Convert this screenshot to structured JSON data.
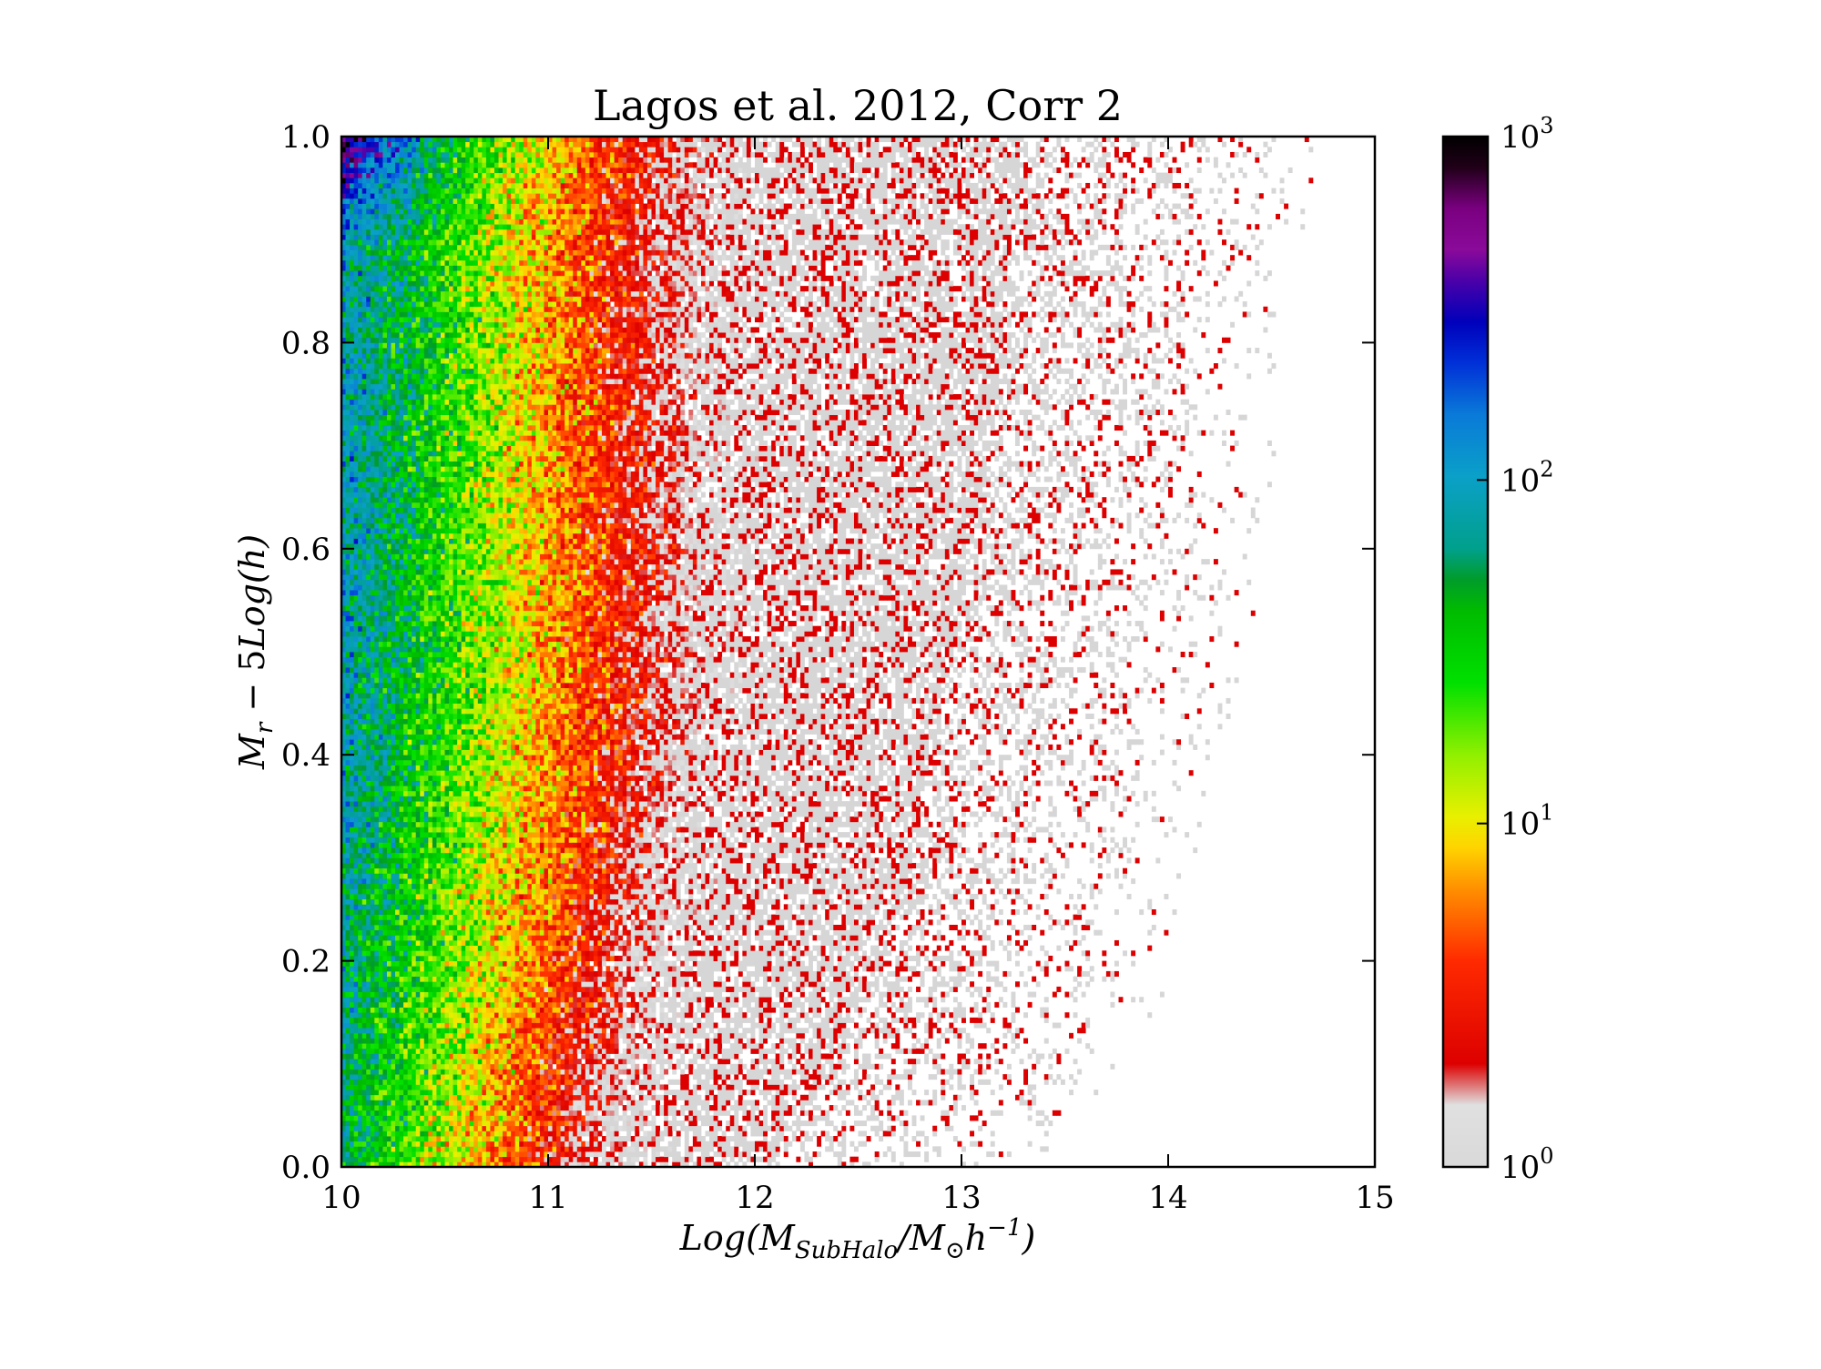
{
  "chart_data": {
    "type": "heatmap",
    "title": "Lagos et al. 2012, Corr 2",
    "xlabel": "Log(M_SubHalo/M_⊙h^{-1})",
    "ylabel": "M_r − 5Log(h)",
    "xlim": [
      10,
      15
    ],
    "ylim": [
      0.0,
      1.0
    ],
    "xticks": [
      10,
      11,
      12,
      13,
      14,
      15
    ],
    "yticks": [
      0.0,
      0.2,
      0.4,
      0.6,
      0.8,
      1.0
    ],
    "xtick_labels": [
      "10",
      "11",
      "12",
      "13",
      "14",
      "15"
    ],
    "ytick_labels": [
      "0.0",
      "0.2",
      "0.4",
      "0.6",
      "0.8",
      "1.0"
    ],
    "grid": false,
    "colorbar": {
      "scale": "log",
      "range": [
        1,
        1000
      ],
      "tick_values": [
        1,
        10,
        100,
        1000
      ],
      "tick_labels": [
        "10",
        "10",
        "10",
        "10"
      ],
      "tick_exponents": [
        "0",
        "1",
        "2",
        "3"
      ],
      "colors": [
        {
          "pos": 0.0,
          "color": "#d9d9d9"
        },
        {
          "pos": 0.06,
          "color": "#e0e0e0"
        },
        {
          "pos": 0.1,
          "color": "#dd0000"
        },
        {
          "pos": 0.2,
          "color": "#ff2a00"
        },
        {
          "pos": 0.27,
          "color": "#ff9000"
        },
        {
          "pos": 0.31,
          "color": "#ffd400"
        },
        {
          "pos": 0.34,
          "color": "#e8f000"
        },
        {
          "pos": 0.4,
          "color": "#90f000"
        },
        {
          "pos": 0.47,
          "color": "#00e000"
        },
        {
          "pos": 0.54,
          "color": "#00bb00"
        },
        {
          "pos": 0.57,
          "color": "#009c2a"
        },
        {
          "pos": 0.6,
          "color": "#00a08c"
        },
        {
          "pos": 0.67,
          "color": "#0aa0c8"
        },
        {
          "pos": 0.73,
          "color": "#0a7ad8"
        },
        {
          "pos": 0.78,
          "color": "#0030d8"
        },
        {
          "pos": 0.82,
          "color": "#0000bb"
        },
        {
          "pos": 0.86,
          "color": "#4a00a8"
        },
        {
          "pos": 0.89,
          "color": "#8a0a9a"
        },
        {
          "pos": 0.93,
          "color": "#7a0080"
        },
        {
          "pos": 0.97,
          "color": "#200018"
        },
        {
          "pos": 1.0,
          "color": "#000000"
        }
      ]
    },
    "density_description": "2D histogram of galaxy counts; highest counts at low subhalo mass and high M_r, decreasing toward high mass"
  }
}
